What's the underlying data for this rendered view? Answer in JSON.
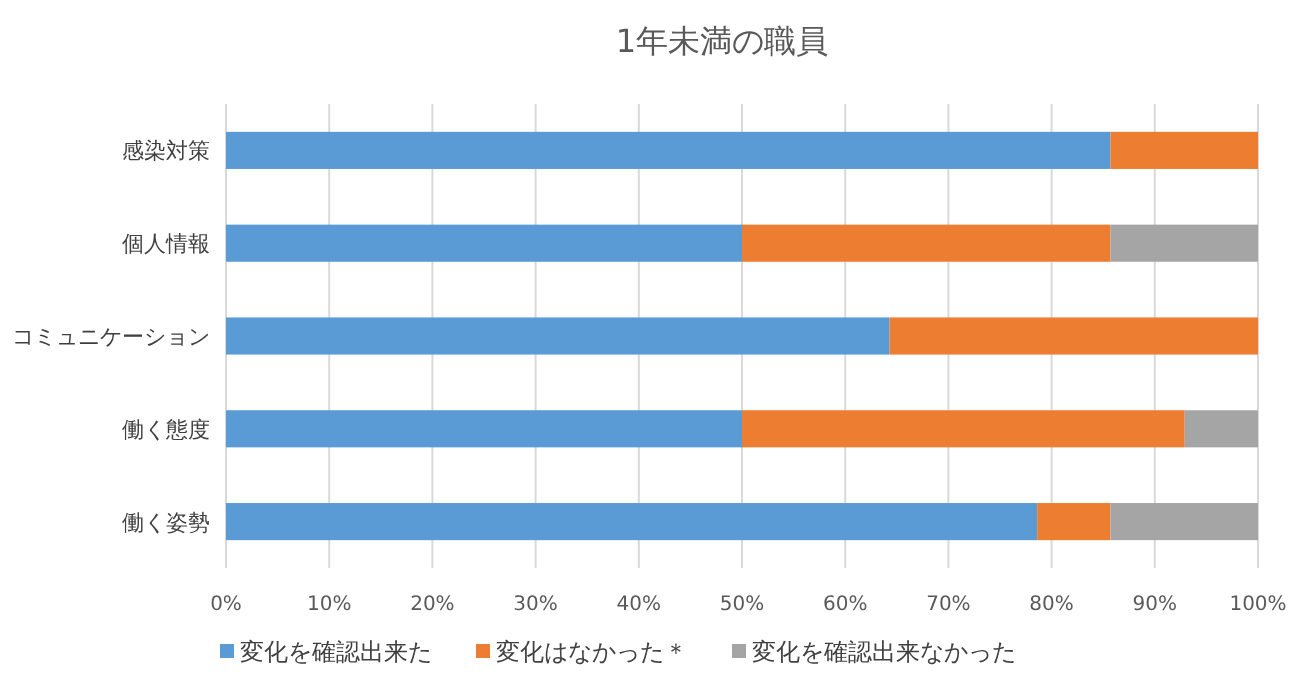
{
  "chart_data": {
    "type": "bar",
    "orientation": "horizontal",
    "stacked": true,
    "title": "1年未満の職員",
    "categories": [
      "感染対策",
      "個人情報",
      "コミュニケーション",
      "働く態度",
      "働く姿勢"
    ],
    "series": [
      {
        "name": "変化を確認出来た",
        "color": "#5b9bd5",
        "values": [
          85.7,
          50,
          64.3,
          50,
          78.6
        ]
      },
      {
        "name": "変化はなかった＊",
        "color": "#ed7d31",
        "values": [
          14.3,
          35.7,
          35.7,
          42.9,
          7.1
        ]
      },
      {
        "name": "変化を確認出来なかった",
        "color": "#a5a5a5",
        "values": [
          0,
          14.3,
          0,
          7.1,
          14.3
        ]
      }
    ],
    "xlim": [
      0,
      100
    ],
    "xticks": [
      {
        "value": 0,
        "label": "0%"
      },
      {
        "value": 10,
        "label": "10%"
      },
      {
        "value": 20,
        "label": "20%"
      },
      {
        "value": 30,
        "label": "30%"
      },
      {
        "value": 40,
        "label": "40%"
      },
      {
        "value": 50,
        "label": "50%"
      },
      {
        "value": 60,
        "label": "60%"
      },
      {
        "value": 70,
        "label": "70%"
      },
      {
        "value": 80,
        "label": "80%"
      },
      {
        "value": 90,
        "label": "90%"
      },
      {
        "value": 100,
        "label": "100%"
      }
    ],
    "grid": "x",
    "legend": "bottom"
  }
}
